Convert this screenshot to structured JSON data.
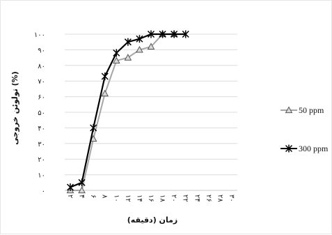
{
  "chart_data": {
    "type": "line",
    "xlabel": "زمان (دقیقه)",
    "ylabel": "تولوئن خروجی (%)",
    "title": "",
    "x_tick_labels": [
      "۲",
      "۴",
      "۶",
      "۸",
      "۱۰",
      "۱۲",
      "۱۴",
      "۱۶",
      "۱۸",
      "۲۰",
      "۲۲",
      "۲۴",
      "۲۶",
      "۲۸",
      "۳۰"
    ],
    "y_tick_labels": [
      "۰",
      "۱۰",
      "۲۰",
      "۳۰",
      "۴۰",
      "۵۰",
      "۶۰",
      "۷۰",
      "۸۰",
      "۹۰",
      "۱۰۰"
    ],
    "xlim": [
      2,
      30
    ],
    "ylim": [
      0,
      100
    ],
    "grid": "horizontal",
    "legend": "right",
    "series": [
      {
        "name": "50 ppm",
        "marker": "triangle",
        "color": "#a6a6a6",
        "x": [
          2,
          4,
          6,
          8,
          10,
          12,
          14,
          16,
          18,
          20
        ],
        "y": [
          0,
          0,
          33,
          62,
          83,
          85,
          90,
          92,
          100,
          100
        ]
      },
      {
        "name": "300 ppm",
        "marker": "star",
        "color": "#000000",
        "x": [
          2,
          4,
          6,
          8,
          10,
          12,
          14,
          16,
          18,
          20,
          22
        ],
        "y": [
          2,
          5,
          40,
          73,
          88,
          95,
          97,
          100,
          100,
          100,
          100
        ]
      }
    ]
  }
}
